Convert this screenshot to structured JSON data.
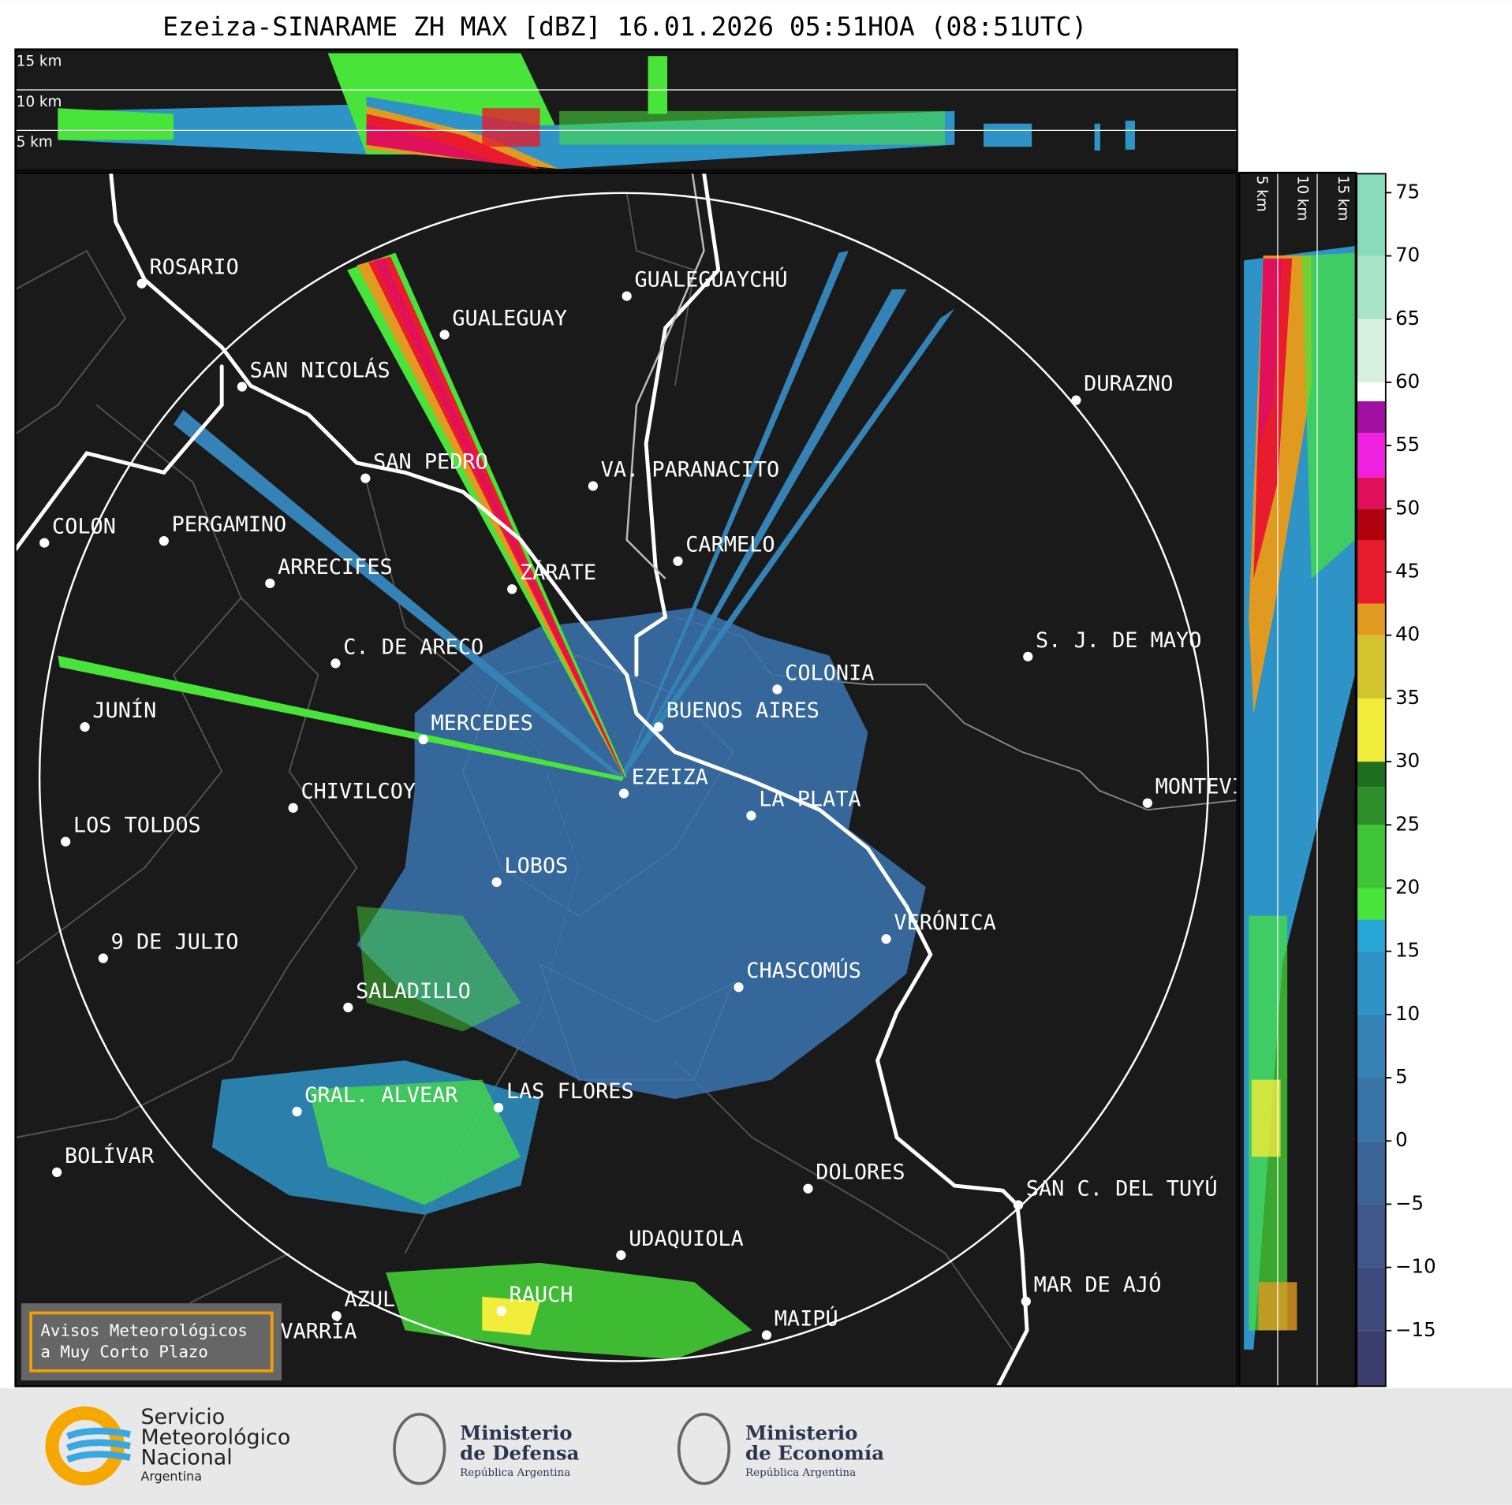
{
  "title": "Ezeiza-SINARAME ZH MAX [dBZ] 16.01.2026 05:51HOA (08:51UTC)",
  "height_labels": {
    "top": [
      "15 km",
      "10 km",
      "5 km"
    ],
    "side": [
      "5 km",
      "10 km",
      "15 km"
    ]
  },
  "cities": [
    "ROSARIO",
    "GUALEGUAYCHÚ",
    "GUALEGUAY",
    "SAN NICOLÁS",
    "DURAZNO",
    "SAN PEDRO",
    "VA. PARANACITO",
    "COLON",
    "PERGAMINO",
    "CARMELO",
    "ARRECIFES",
    "ZÁRATE",
    "S. J. DE MAYO",
    "C. DE ARECO",
    "COLONIA",
    "BUENOS AIRES",
    "JUNÍN",
    "MERCEDES",
    "EZEIZA",
    "MONTEVIDEO",
    "CHIVILCOY",
    "LA PLATA",
    "LOS TOLDOS",
    "LOBOS",
    "VERÓNICA",
    "9 DE JULIO",
    "CHASCOMÚS",
    "SALADILLO",
    "GRAL. ALVEAR",
    "LAS FLORES",
    "BOLÍVAR",
    "DOLORES",
    "SAN C. DEL TUYÚ",
    "UDAQUIOLA",
    "MAR DE AJÓ",
    "AZUL",
    "RAUCH",
    "OLAVARRÍA",
    "MAIPÚ"
  ],
  "colorbar": {
    "range": [
      -19.4,
      76.5
    ],
    "ticks": [
      75,
      70,
      65,
      60,
      55,
      50,
      45,
      40,
      35,
      30,
      25,
      20,
      15,
      10,
      5,
      0,
      {
        "value": -5,
        "label": "−5"
      },
      {
        "value": -10,
        "label": "−10"
      },
      {
        "value": -15,
        "label": "−15"
      }
    ],
    "bands": [
      {
        "from": -19.4,
        "color": "#3c3f6e"
      },
      {
        "from": -15,
        "color": "#3e4a7c"
      },
      {
        "from": -10,
        "color": "#3f578a"
      },
      {
        "from": -5,
        "color": "#3c6597"
      },
      {
        "from": 0,
        "color": "#3873a6"
      },
      {
        "from": 5,
        "color": "#3583b6"
      },
      {
        "from": 10,
        "color": "#2e93c6"
      },
      {
        "from": 15,
        "color": "#27a6d8"
      },
      {
        "from": 17.5,
        "color": "#48e43a"
      },
      {
        "from": 20,
        "color": "#3fc636"
      },
      {
        "from": 25,
        "color": "#2e8f2a"
      },
      {
        "from": 28,
        "color": "#1f6e20"
      },
      {
        "from": 30,
        "color": "#f2ec3a"
      },
      {
        "from": 35,
        "color": "#d4c42e"
      },
      {
        "from": 40,
        "color": "#e19a20"
      },
      {
        "from": 42.5,
        "color": "#e81c2c"
      },
      {
        "from": 47.5,
        "color": "#b00010"
      },
      {
        "from": 50,
        "color": "#e0105a"
      },
      {
        "from": 52.5,
        "color": "#f020e0"
      },
      {
        "from": 56,
        "color": "#a010a0"
      },
      {
        "from": 58.5,
        "color": "#ffffff"
      },
      {
        "from": 60,
        "color": "#d8f0e0"
      },
      {
        "from": 65,
        "color": "#a8e4c8"
      },
      {
        "from": 70,
        "color": "#88dcbc"
      }
    ]
  },
  "notice": [
    "Avisos Meteorológicos",
    "a Muy Corto Plazo"
  ],
  "logos": {
    "smn": [
      "Servicio",
      "Meteorológico",
      "Nacional",
      "Argentina"
    ],
    "defensa": [
      "Ministerio",
      "de Defensa",
      "República Argentina"
    ],
    "economia": [
      "Ministerio",
      "de Economía",
      "República Argentina"
    ]
  }
}
